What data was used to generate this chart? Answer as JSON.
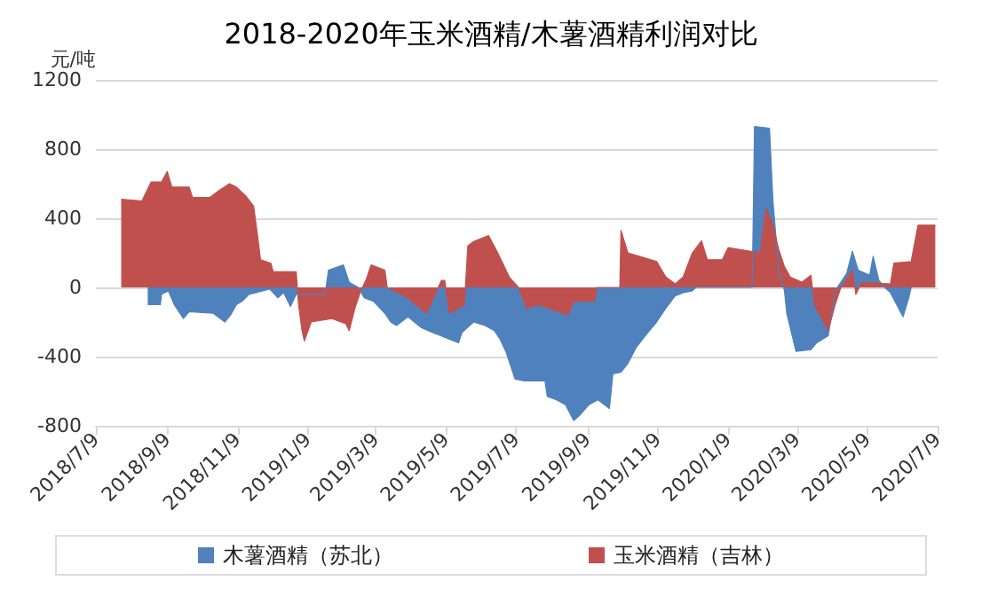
{
  "chart_data": {
    "type": "area",
    "title": "2018-2020年玉米酒精/木薯酒精利润对比",
    "ylabel": "元/吨",
    "xlim": [
      "2018-07-09",
      "2020-07-09"
    ],
    "xticks": [
      {
        "value": "2018-07-09",
        "label": "2018/7/9"
      },
      {
        "value": "2018-09-09",
        "label": "2018/9/9"
      },
      {
        "value": "2018-11-09",
        "label": "2018/11/9"
      },
      {
        "value": "2019-01-09",
        "label": "2019/1/9"
      },
      {
        "value": "2019-03-09",
        "label": "2019/3/9"
      },
      {
        "value": "2019-05-09",
        "label": "2019/5/9"
      },
      {
        "value": "2019-07-09",
        "label": "2019/7/9"
      },
      {
        "value": "2019-09-09",
        "label": "2019/9/9"
      },
      {
        "value": "2019-11-09",
        "label": "2019/11/9"
      },
      {
        "value": "2020-01-09",
        "label": "2020/1/9"
      },
      {
        "value": "2020-03-09",
        "label": "2020/3/9"
      },
      {
        "value": "2020-05-09",
        "label": "2020/5/9"
      },
      {
        "value": "2020-07-09",
        "label": "2020/7/9"
      }
    ],
    "ylim": [
      -800,
      1200
    ],
    "yticks": [
      -800,
      -400,
      0,
      400,
      800,
      1200
    ],
    "grid": "y",
    "legend": "bottom",
    "series": [
      {
        "name": "木薯酒精（苏北）",
        "color": "#4f81bd",
        "x": [
          "2018-08-23",
          "2018-09-03",
          "2018-09-04",
          "2018-09-10",
          "2018-09-15",
          "2018-09-23",
          "2018-09-28",
          "2018-10-19",
          "2018-10-29",
          "2018-11-03",
          "2018-11-08",
          "2018-11-13",
          "2018-11-19",
          "2018-12-07",
          "2018-12-14",
          "2018-12-19",
          "2018-12-25",
          "2018-12-30",
          "2019-01-24",
          "2019-01-27",
          "2019-02-09",
          "2019-02-14",
          "2019-02-22",
          "2019-02-27",
          "2019-03-07",
          "2019-03-17",
          "2019-03-22",
          "2019-03-27",
          "2019-04-06",
          "2019-04-17",
          "2019-04-27",
          "2019-05-05",
          "2019-05-12",
          "2019-05-20",
          "2019-05-23",
          "2019-06-02",
          "2019-06-12",
          "2019-06-20",
          "2019-06-25",
          "2019-06-30",
          "2019-07-08",
          "2019-07-16",
          "2019-08-03",
          "2019-08-05",
          "2019-08-13",
          "2019-08-21",
          "2019-08-28",
          "2019-09-02",
          "2019-09-10",
          "2019-09-18",
          "2019-09-28",
          "2019-10-01",
          "2019-10-08",
          "2019-10-14",
          "2019-10-21",
          "2019-10-29",
          "2019-11-08",
          "2019-11-16",
          "2019-11-24",
          "2019-12-01",
          "2019-12-09",
          "2019-12-12",
          "2020-01-30",
          "2020-02-01",
          "2020-02-14",
          "2020-02-17",
          "2020-02-22",
          "2020-02-27",
          "2020-02-29",
          "2020-03-08",
          "2020-03-21",
          "2020-03-26",
          "2020-04-05",
          "2020-04-11",
          "2020-04-21",
          "2020-04-26",
          "2020-05-01",
          "2020-05-11",
          "2020-05-14",
          "2020-05-19",
          "2020-05-24",
          "2020-05-29",
          "2020-06-09",
          "2020-06-14",
          "2020-06-16"
        ],
        "values": [
          -100,
          -100,
          -40,
          -20,
          -100,
          -180,
          -140,
          -150,
          -200,
          -160,
          -100,
          -80,
          -40,
          -10,
          -60,
          -30,
          -110,
          -40,
          -40,
          100,
          130,
          30,
          0,
          -60,
          -80,
          -150,
          -200,
          -220,
          -170,
          -230,
          -260,
          -280,
          -300,
          -320,
          -260,
          -200,
          -220,
          -250,
          -300,
          -370,
          -530,
          -540,
          -540,
          -630,
          -650,
          -680,
          -770,
          -740,
          -680,
          -650,
          -700,
          -500,
          -490,
          -440,
          -350,
          -280,
          -200,
          -120,
          -50,
          -30,
          -20,
          0,
          0,
          930,
          920,
          500,
          100,
          -20,
          -150,
          -370,
          -360,
          -320,
          -280,
          -20,
          80,
          210,
          100,
          70,
          180,
          40,
          0,
          -30,
          -170,
          -60,
          0
        ]
      },
      {
        "name": "玉米酒精（吉林）",
        "color": "#c0504d",
        "x": [
          "2018-07-31",
          "2018-08-18",
          "2018-08-26",
          "2018-09-04",
          "2018-09-09",
          "2018-09-13",
          "2018-09-28",
          "2018-10-01",
          "2018-10-16",
          "2018-10-24",
          "2018-11-02",
          "2018-11-08",
          "2018-11-16",
          "2018-11-23",
          "2018-11-26",
          "2018-11-29",
          "2018-12-08",
          "2018-12-10",
          "2018-12-30",
          "2019-01-01",
          "2019-01-04",
          "2019-01-06",
          "2019-01-12",
          "2019-01-30",
          "2019-02-11",
          "2019-02-14",
          "2019-02-19",
          "2019-02-24",
          "2019-03-01",
          "2019-03-05",
          "2019-03-17",
          "2019-03-19",
          "2019-04-06",
          "2019-04-22",
          "2019-04-29",
          "2019-05-05",
          "2019-05-08",
          "2019-05-12",
          "2019-05-25",
          "2019-05-28",
          "2019-06-02",
          "2019-06-15",
          "2019-06-23",
          "2019-07-03",
          "2019-07-11",
          "2019-07-18",
          "2019-07-29",
          "2019-08-23",
          "2019-08-28",
          "2019-09-15",
          "2019-09-17",
          "2019-10-07",
          "2019-10-08",
          "2019-10-14",
          "2019-11-03",
          "2019-11-08",
          "2019-11-16",
          "2019-11-24",
          "2019-12-01",
          "2019-12-09",
          "2019-12-17",
          "2019-12-22",
          "2020-01-04",
          "2020-01-09",
          "2020-02-06",
          "2020-02-11",
          "2020-02-17",
          "2020-02-22",
          "2020-02-27",
          "2020-03-03",
          "2020-03-13",
          "2020-03-21",
          "2020-03-24",
          "2020-04-05",
          "2020-04-11",
          "2020-04-16",
          "2020-04-26",
          "2020-04-29",
          "2020-05-04",
          "2020-05-29",
          "2020-06-01",
          "2020-06-16",
          "2020-06-22",
          "2020-07-07"
        ],
        "values": [
          510,
          500,
          610,
          610,
          670,
          580,
          580,
          520,
          520,
          560,
          600,
          580,
          530,
          470,
          320,
          160,
          140,
          90,
          90,
          -100,
          -250,
          -310,
          -200,
          -180,
          -210,
          -250,
          -120,
          -20,
          50,
          130,
          100,
          0,
          -60,
          -150,
          -50,
          40,
          40,
          -150,
          -100,
          240,
          265,
          300,
          200,
          60,
          0,
          -120,
          -100,
          -160,
          -80,
          -80,
          0,
          0,
          330,
          200,
          160,
          150,
          60,
          20,
          60,
          200,
          270,
          160,
          160,
          230,
          200,
          460,
          360,
          220,
          120,
          60,
          30,
          70,
          -100,
          -250,
          -100,
          0,
          100,
          -40,
          30,
          20,
          140,
          150,
          360,
          360
        ]
      }
    ]
  }
}
